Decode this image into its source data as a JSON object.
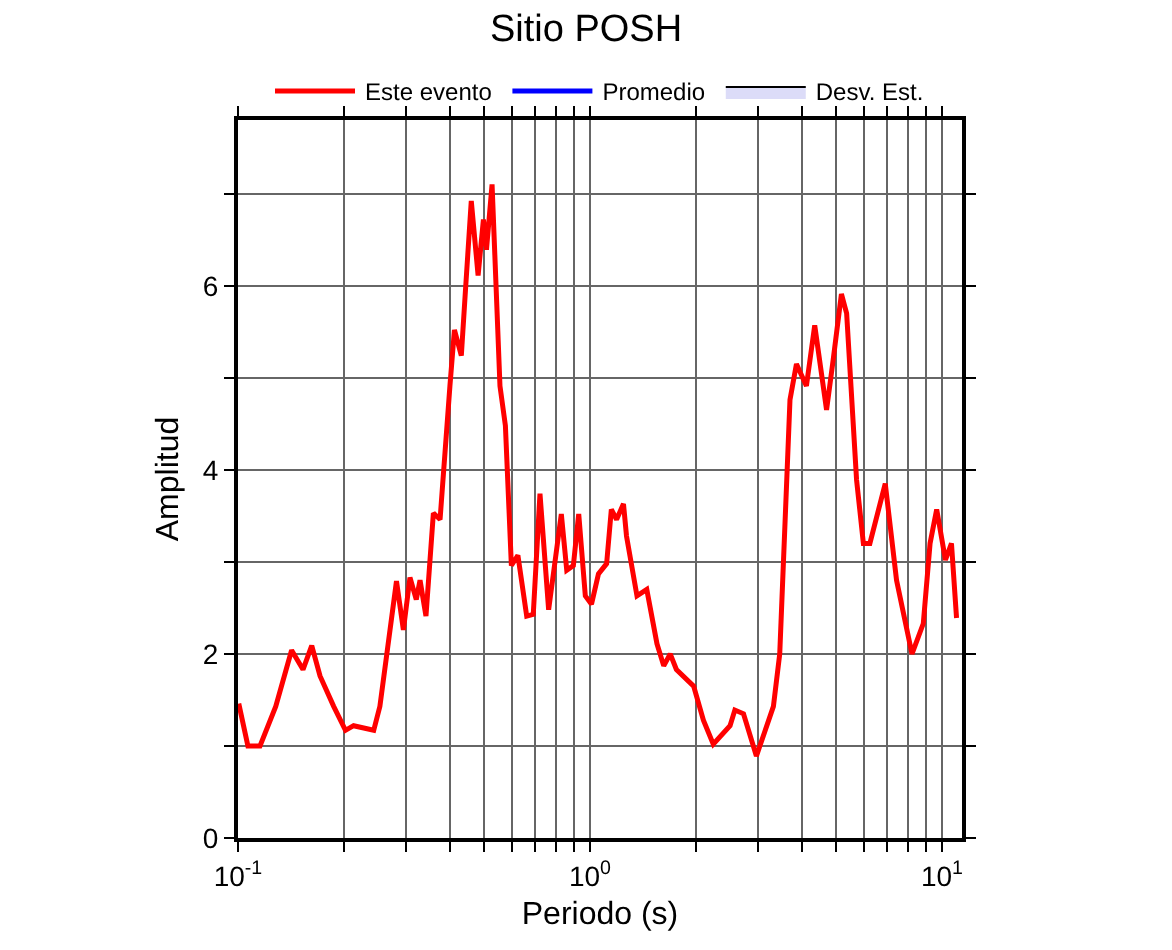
{
  "chart_data": {
    "type": "line",
    "title": "Sitio POSH",
    "xlabel": "Periodo (s)",
    "ylabel": "Amplitud",
    "log": "x",
    "grid": true,
    "legend": "top",
    "line_style": "solid",
    "marker": "none",
    "xlim": [
      0.1,
      11.4
    ],
    "ylim": [
      0,
      7.8
    ],
    "xticks": [
      {
        "value": 0.1,
        "label": "10$^{-1}$"
      },
      {
        "value": 0.2,
        "label": null
      },
      {
        "value": 0.3,
        "label": null
      },
      {
        "value": 0.4,
        "label": null
      },
      {
        "value": 0.5,
        "label": null
      },
      {
        "value": 0.6,
        "label": null
      },
      {
        "value": 0.7,
        "label": null
      },
      {
        "value": 0.8,
        "label": null
      },
      {
        "value": 0.9,
        "label": null
      },
      {
        "value": 1,
        "label": "10$^{0}$"
      },
      {
        "value": 2,
        "label": null
      },
      {
        "value": 3,
        "label": null
      },
      {
        "value": 4,
        "label": null
      },
      {
        "value": 5,
        "label": null
      },
      {
        "value": 6,
        "label": null
      },
      {
        "value": 7,
        "label": null
      },
      {
        "value": 8,
        "label": null
      },
      {
        "value": 9,
        "label": null
      },
      {
        "value": 10,
        "label": "10$^{1}$"
      }
    ],
    "yticks": [
      0,
      {
        "value": 1,
        "label": null
      },
      2,
      {
        "value": 3,
        "label": null
      },
      4,
      {
        "value": 5,
        "label": null
      },
      6,
      {
        "value": 7,
        "label": null
      }
    ],
    "series": [
      {
        "name": "Este evento",
        "color": "#ff0000",
        "x": [
          0.1005,
          0.1067,
          0.1155,
          0.128,
          0.142,
          0.153,
          0.162,
          0.171,
          0.187,
          0.202,
          0.213,
          0.243,
          0.253,
          0.282,
          0.295,
          0.308,
          0.321,
          0.329,
          0.342,
          0.359,
          0.375,
          0.4,
          0.412,
          0.431,
          0.443,
          0.46,
          0.481,
          0.498,
          0.508,
          0.527,
          0.555,
          0.575,
          0.598,
          0.624,
          0.661,
          0.69,
          0.721,
          0.763,
          0.829,
          0.859,
          0.897,
          0.929,
          0.97,
          1.01,
          1.057,
          1.115,
          1.15,
          1.19,
          1.245,
          1.27,
          1.36,
          1.45,
          1.55,
          1.62,
          1.69,
          1.76,
          1.97,
          2.1,
          2.24,
          2.5,
          2.58,
          2.73,
          2.97,
          3.32,
          3.46,
          3.7,
          3.86,
          4.12,
          4.35,
          4.7,
          4.91,
          5.18,
          5.36,
          5.72,
          5.98,
          6.24,
          6.9,
          7.43,
          8.22,
          8.85,
          9.25,
          9.66,
          10.23,
          10.64,
          11.0
        ],
        "values": [
          1.46,
          1.0,
          1.0,
          1.43,
          2.04,
          1.83,
          2.09,
          1.76,
          1.43,
          1.17,
          1.22,
          1.17,
          1.43,
          2.79,
          2.26,
          2.83,
          2.59,
          2.8,
          2.41,
          3.53,
          3.46,
          4.91,
          5.52,
          5.24,
          5.96,
          6.92,
          6.11,
          6.72,
          6.39,
          7.1,
          4.91,
          4.48,
          2.96,
          3.07,
          2.41,
          2.43,
          3.74,
          2.48,
          3.52,
          2.91,
          2.96,
          3.52,
          2.63,
          2.54,
          2.87,
          2.98,
          3.57,
          3.46,
          3.63,
          3.28,
          2.63,
          2.7,
          2.11,
          1.87,
          2.0,
          1.83,
          1.65,
          1.28,
          1.02,
          1.22,
          1.39,
          1.35,
          0.89,
          1.43,
          2.0,
          4.76,
          5.15,
          4.91,
          5.57,
          4.65,
          5.2,
          5.91,
          5.7,
          3.89,
          3.2,
          3.2,
          3.85,
          2.8,
          2.0,
          2.33,
          3.2,
          3.57,
          3.02,
          3.2,
          2.39
        ]
      },
      {
        "name": "Promedio",
        "color": "#0000ff"
      },
      {
        "name": "Desv. Est.",
        "type": "area",
        "color": "#dcdcf8"
      }
    ]
  }
}
